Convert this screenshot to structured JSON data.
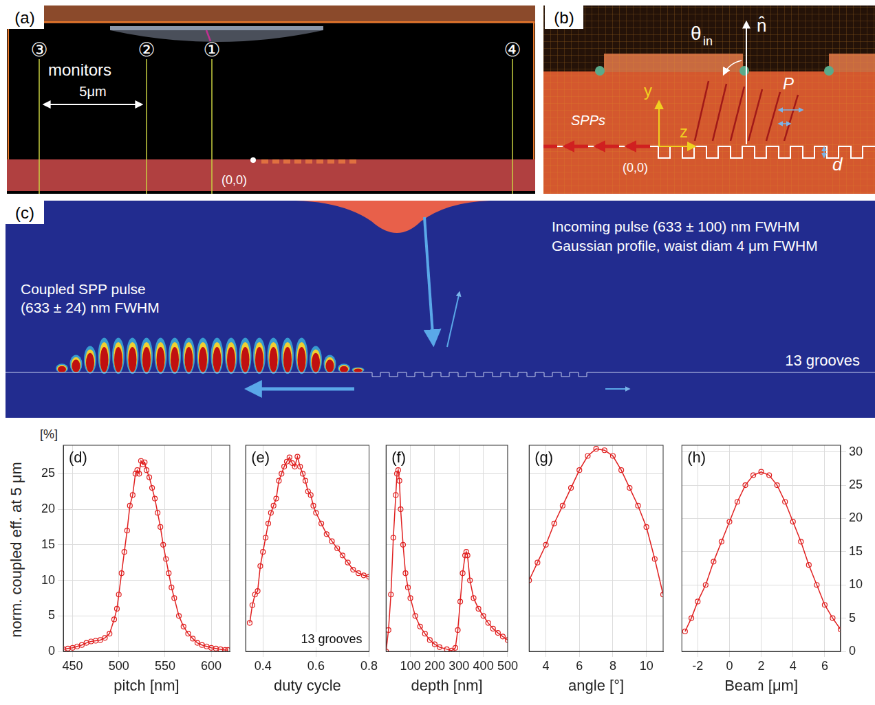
{
  "figure": {
    "y_label": "norm. coupled eff.  at 5 μm",
    "y_unit": "[%]"
  },
  "diagrams": {
    "a": {
      "label": "(a)",
      "monitor_text": "monitors",
      "monitors": [
        "①",
        "②",
        "③",
        "④"
      ],
      "distance": "5μm",
      "origin": "(0,0)"
    },
    "b": {
      "label": "(b)",
      "theta": "θ",
      "theta_sub": "in",
      "normal": "n̂",
      "y": "y",
      "z": "z",
      "spp": "SPPs",
      "pitch": "P",
      "depth": "d",
      "origin": "(0,0)"
    },
    "c": {
      "label": "(c)",
      "incoming": [
        "Incoming pulse (633 ± 100) nm FWHM",
        "Gaussian profile, waist diam 4 μm FWHM"
      ],
      "coupled": [
        "Coupled SPP pulse",
        "(633 ± 24) nm FWHM"
      ],
      "grooves": "13 grooves"
    }
  },
  "chart_data": [
    {
      "type": "line",
      "title": "(d)",
      "x_label": "pitch [nm]",
      "x": [
        440,
        445,
        450,
        455,
        460,
        465,
        470,
        475,
        480,
        485,
        490,
        495,
        498,
        500,
        503,
        506,
        509,
        512,
        515,
        518,
        520,
        522,
        524,
        526,
        528,
        530,
        533,
        536,
        539,
        542,
        545,
        548,
        551,
        554,
        557,
        560,
        565,
        570,
        575,
        580,
        585,
        590,
        595,
        600,
        605,
        610,
        615,
        618
      ],
      "series": [
        {
          "color": "#e02020",
          "marker": "circle",
          "line_style": "solid",
          "values": [
            0.3,
            0.4,
            0.5,
            0.7,
            0.9,
            1.2,
            1.4,
            1.5,
            1.6,
            1.9,
            2.5,
            4.5,
            6,
            8,
            11,
            14,
            17,
            20.5,
            22,
            25,
            25.5,
            25,
            26.8,
            26.3,
            26.6,
            25.5,
            24.5,
            23,
            21.5,
            19.5,
            17.5,
            15,
            13,
            11,
            9,
            7.5,
            5,
            3.5,
            2.5,
            1.8,
            1.2,
            0.9,
            0.7,
            0.5,
            0.4,
            0.3,
            0.2,
            0.2
          ]
        }
      ],
      "xlim": [
        440,
        620
      ],
      "xticks": [
        450,
        500,
        550,
        600
      ],
      "ylim": [
        0,
        29
      ],
      "yticks": [
        0,
        5,
        10,
        15,
        20,
        25
      ],
      "grid": true
    },
    {
      "type": "line",
      "title": "(e)",
      "x_label": "duty cycle",
      "annotations": [
        "13 grooves"
      ],
      "x": [
        0.35,
        0.36,
        0.37,
        0.38,
        0.39,
        0.4,
        0.41,
        0.42,
        0.43,
        0.44,
        0.45,
        0.46,
        0.47,
        0.48,
        0.49,
        0.5,
        0.51,
        0.52,
        0.53,
        0.54,
        0.55,
        0.56,
        0.57,
        0.58,
        0.59,
        0.6,
        0.62,
        0.64,
        0.66,
        0.68,
        0.7,
        0.72,
        0.74,
        0.76,
        0.78,
        0.8
      ],
      "series": [
        {
          "color": "#e02020",
          "marker": "circle",
          "line_style": "solid",
          "values": [
            4,
            6.5,
            8,
            8.5,
            12,
            14,
            16,
            18,
            19.5,
            20.5,
            21.5,
            24,
            25,
            26,
            26.7,
            27.3,
            26.5,
            26,
            27.4,
            26,
            25,
            24,
            22.5,
            22,
            20.5,
            19.5,
            18,
            16.5,
            15.5,
            14.5,
            13.5,
            12.5,
            11.5,
            11,
            10.7,
            10.5
          ]
        }
      ],
      "xlim": [
        0.335,
        0.8
      ],
      "xticks": [
        0.4,
        0.6,
        0.8
      ],
      "ylim": [
        0,
        29
      ],
      "yticks": [
        0,
        5,
        10,
        15,
        20,
        25
      ],
      "grid": true,
      "tick_labels": "x"
    },
    {
      "type": "line",
      "title": "(f)",
      "x_label": "depth [nm]",
      "x": [
        0,
        10,
        20,
        30,
        40,
        45,
        50,
        55,
        60,
        70,
        80,
        90,
        100,
        120,
        140,
        160,
        180,
        200,
        220,
        250,
        270,
        285,
        295,
        305,
        315,
        325,
        330,
        335,
        345,
        360,
        380,
        400,
        420,
        440,
        460,
        480,
        500
      ],
      "series": [
        {
          "color": "#e02020",
          "marker": "circle",
          "line_style": "solid",
          "values": [
            0,
            3,
            8,
            16,
            22,
            25,
            25.5,
            24,
            20,
            15,
            11,
            9,
            7.5,
            5,
            3.5,
            2.5,
            1.6,
            1,
            0.6,
            0.3,
            0.1,
            0.5,
            3,
            7,
            11,
            13.5,
            14,
            13.5,
            10,
            7.5,
            6,
            5,
            4,
            3.2,
            2.6,
            2.1,
            1.6
          ]
        }
      ],
      "xlim": [
        0,
        500
      ],
      "xticks": [
        100,
        200,
        300,
        400,
        500
      ],
      "ylim": [
        0,
        29
      ],
      "yticks": [
        0,
        5,
        10,
        15,
        20,
        25
      ],
      "grid": true,
      "tick_labels": "x"
    },
    {
      "type": "line",
      "title": "(g)",
      "x_label": "angle [°]",
      "x": [
        3,
        3.5,
        4,
        4.5,
        5,
        5.5,
        6,
        6.5,
        7,
        7.5,
        8,
        8.5,
        9,
        9.5,
        10,
        10.5,
        11
      ],
      "series": [
        {
          "color": "#e02020",
          "marker": "circle",
          "line_style": "solid",
          "values": [
            10,
            12.5,
            15,
            18,
            20.5,
            23,
            25.5,
            27.5,
            28.5,
            28.3,
            27.5,
            25.5,
            23,
            20.5,
            17.5,
            13,
            8
          ]
        }
      ],
      "xlim": [
        3,
        11
      ],
      "xticks": [
        4,
        6,
        8,
        10
      ],
      "ylim": [
        0,
        29
      ],
      "yticks": [
        0,
        5,
        10,
        15,
        20,
        25
      ],
      "grid": true,
      "tick_labels": "x"
    },
    {
      "type": "line",
      "title": "(h)",
      "x_label": "Beam [μm]",
      "x": [
        -2.8,
        -2.4,
        -2,
        -1.5,
        -1,
        -0.5,
        0,
        0.5,
        1,
        1.5,
        2,
        2.5,
        3,
        3.5,
        4,
        4.5,
        5,
        5.5,
        6,
        6.5,
        7
      ],
      "series": [
        {
          "color": "#e02020",
          "marker": "circle",
          "line_style": "solid",
          "axis": "y2",
          "values": [
            3,
            5,
            7.5,
            10,
            13.5,
            16.5,
            19.5,
            22.5,
            25,
            26.5,
            27,
            26.5,
            25,
            22.5,
            19.5,
            16.5,
            13,
            10,
            7,
            5,
            3.3
          ]
        }
      ],
      "xlim": [
        -3,
        7
      ],
      "xticks": [
        -2,
        0,
        2,
        4,
        6
      ],
      "y2lim": [
        0,
        31
      ],
      "y2ticks": [
        0,
        5,
        10,
        15,
        20,
        25,
        30
      ],
      "grid": true
    }
  ]
}
